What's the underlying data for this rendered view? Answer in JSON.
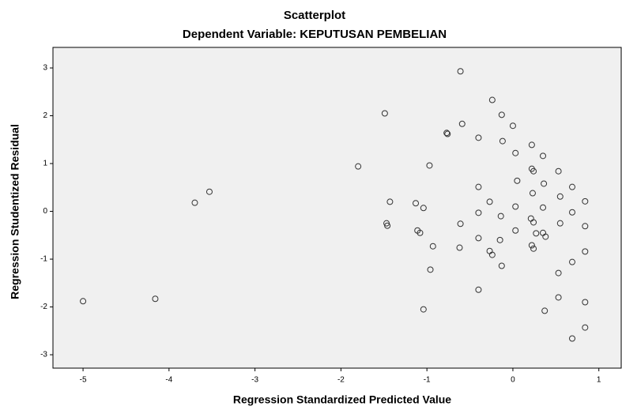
{
  "chart_data": {
    "type": "scatter",
    "title": "Scatterplot",
    "subtitle": "Dependent Variable: KEPUTUSAN PEMBELIAN",
    "x_label": "Regression Standardized Predicted Value",
    "y_label": "Regression Studentized Residual",
    "color": "#333333",
    "x": [
      -5.0,
      -4.16,
      -3.7,
      -3.53,
      -1.8,
      -1.49,
      -1.43,
      -1.47,
      -1.46,
      -1.13,
      -1.11,
      -1.08,
      -0.97,
      -0.93,
      -0.96,
      -1.04,
      -1.04,
      -0.77,
      -0.76,
      -0.61,
      -0.59,
      -0.61,
      -0.62,
      -0.4,
      -0.4,
      -0.4,
      -0.4,
      -0.4,
      -0.27,
      -0.24,
      -0.27,
      -0.24,
      -0.13,
      -0.12,
      -0.14,
      -0.15,
      -0.13,
      0.0,
      0.03,
      0.05,
      0.03,
      0.03,
      0.22,
      0.22,
      0.24,
      0.23,
      0.21,
      0.24,
      0.22,
      0.24,
      0.27,
      0.35,
      0.36,
      0.35,
      0.35,
      0.38,
      0.37,
      0.53,
      0.55,
      0.55,
      0.53,
      0.53,
      0.69,
      0.69,
      0.69,
      0.69,
      0.84,
      0.84,
      0.84,
      0.84,
      0.84
    ],
    "y": [
      -1.88,
      -1.83,
      0.18,
      0.41,
      0.94,
      2.05,
      0.2,
      -0.25,
      -0.3,
      0.17,
      -0.4,
      -0.45,
      0.96,
      -0.73,
      -1.22,
      0.07,
      -2.05,
      1.64,
      1.62,
      2.93,
      1.83,
      -0.26,
      -0.76,
      -0.03,
      0.51,
      1.54,
      -0.56,
      -1.64,
      -0.83,
      -0.91,
      0.2,
      2.33,
      2.02,
      1.47,
      -0.1,
      -0.6,
      -1.14,
      1.79,
      1.22,
      0.64,
      0.1,
      -0.4,
      1.39,
      0.89,
      0.84,
      0.38,
      -0.15,
      -0.23,
      -0.71,
      -0.78,
      -0.46,
      1.16,
      0.58,
      0.08,
      -0.45,
      -0.53,
      -2.08,
      0.84,
      0.31,
      -0.25,
      -1.29,
      -1.8,
      0.51,
      -0.02,
      -1.06,
      -2.66,
      0.21,
      -0.31,
      -0.84,
      -1.9,
      -2.43
    ],
    "xlim": [
      -5.35,
      1.26
    ],
    "ylim": [
      -3.28,
      3.43
    ],
    "xticks": [
      -5,
      -4,
      -3,
      -2,
      -1,
      0,
      1
    ],
    "yticks": [
      -3,
      -2,
      -1,
      0,
      1,
      2,
      3
    ]
  }
}
